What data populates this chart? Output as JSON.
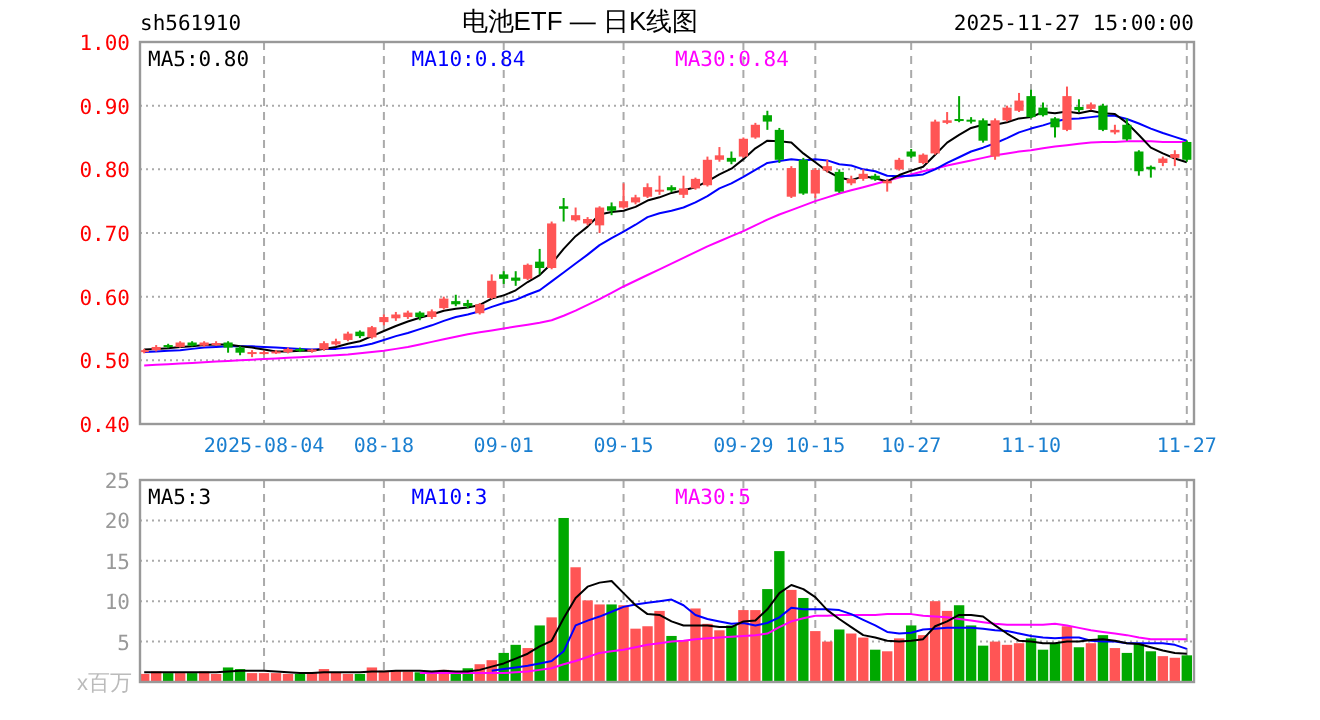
{
  "chart_data": [
    {
      "type": "candlestick",
      "title": "电池ETF — 日K线图",
      "annotations": [
        "sh561910",
        "2025-11-27 15:00:00"
      ],
      "categories": [
        null,
        null,
        null,
        null,
        null,
        null,
        null,
        null,
        null,
        null,
        "2025-08-04",
        null,
        null,
        null,
        null,
        null,
        null,
        null,
        null,
        null,
        "08-18",
        null,
        null,
        null,
        null,
        null,
        null,
        null,
        null,
        null,
        "09-01",
        null,
        null,
        null,
        null,
        null,
        null,
        null,
        null,
        null,
        "09-15",
        null,
        null,
        null,
        null,
        null,
        null,
        null,
        null,
        null,
        "09-29",
        null,
        null,
        null,
        null,
        null,
        "10-15",
        null,
        null,
        null,
        null,
        null,
        null,
        null,
        "10-27",
        null,
        null,
        null,
        null,
        null,
        null,
        null,
        null,
        null,
        "11-10",
        null,
        null,
        null,
        null,
        null,
        null,
        null,
        null,
        null,
        null,
        null,
        null,
        "11-27"
      ],
      "ohlc": [
        [
          0.513,
          0.518,
          0.511,
          0.516
        ],
        [
          0.516,
          0.524,
          0.514,
          0.521
        ],
        [
          0.524,
          0.526,
          0.519,
          0.521
        ],
        [
          0.521,
          0.53,
          0.52,
          0.528
        ],
        [
          0.528,
          0.53,
          0.522,
          0.523
        ],
        [
          0.523,
          0.53,
          0.521,
          0.528
        ],
        [
          0.525,
          0.53,
          0.523,
          0.527
        ],
        [
          0.528,
          0.53,
          0.512,
          0.52
        ],
        [
          0.52,
          0.522,
          0.508,
          0.512
        ],
        [
          0.51,
          0.516,
          0.505,
          0.513
        ],
        [
          0.511,
          0.515,
          0.509,
          0.513
        ],
        [
          0.512,
          0.516,
          0.51,
          0.514
        ],
        [
          0.513,
          0.52,
          0.511,
          0.518
        ],
        [
          0.518,
          0.52,
          0.513,
          0.515
        ],
        [
          0.514,
          0.518,
          0.512,
          0.517
        ],
        [
          0.517,
          0.53,
          0.515,
          0.527
        ],
        [
          0.525,
          0.534,
          0.523,
          0.53
        ],
        [
          0.532,
          0.545,
          0.53,
          0.542
        ],
        [
          0.545,
          0.547,
          0.535,
          0.538
        ],
        [
          0.536,
          0.554,
          0.534,
          0.552
        ],
        [
          0.56,
          0.572,
          0.555,
          0.568
        ],
        [
          0.566,
          0.576,
          0.562,
          0.572
        ],
        [
          0.568,
          0.578,
          0.565,
          0.575
        ],
        [
          0.575,
          0.577,
          0.563,
          0.568
        ],
        [
          0.568,
          0.58,
          0.565,
          0.577
        ],
        [
          0.582,
          0.6,
          0.58,
          0.597
        ],
        [
          0.593,
          0.603,
          0.585,
          0.588
        ],
        [
          0.59,
          0.595,
          0.582,
          0.585
        ],
        [
          0.574,
          0.59,
          0.572,
          0.588
        ],
        [
          0.598,
          0.635,
          0.596,
          0.625
        ],
        [
          0.635,
          0.64,
          0.62,
          0.628
        ],
        [
          0.63,
          0.64,
          0.617,
          0.625
        ],
        [
          0.628,
          0.652,
          0.626,
          0.65
        ],
        [
          0.655,
          0.675,
          0.635,
          0.645
        ],
        [
          0.645,
          0.718,
          0.643,
          0.715
        ],
        [
          0.742,
          0.755,
          0.718,
          0.738
        ],
        [
          0.72,
          0.74,
          0.718,
          0.728
        ],
        [
          0.715,
          0.725,
          0.712,
          0.722
        ],
        [
          0.712,
          0.742,
          0.7,
          0.74
        ],
        [
          0.742,
          0.748,
          0.728,
          0.735
        ],
        [
          0.74,
          0.778,
          0.738,
          0.75
        ],
        [
          0.748,
          0.76,
          0.745,
          0.756
        ],
        [
          0.757,
          0.778,
          0.755,
          0.772
        ],
        [
          0.765,
          0.79,
          0.76,
          0.768
        ],
        [
          0.772,
          0.775,
          0.764,
          0.767
        ],
        [
          0.76,
          0.79,
          0.755,
          0.77
        ],
        [
          0.77,
          0.787,
          0.768,
          0.785
        ],
        [
          0.775,
          0.82,
          0.773,
          0.815
        ],
        [
          0.815,
          0.835,
          0.812,
          0.822
        ],
        [
          0.818,
          0.828,
          0.808,
          0.812
        ],
        [
          0.82,
          0.85,
          0.818,
          0.848
        ],
        [
          0.85,
          0.873,
          0.848,
          0.87
        ],
        [
          0.885,
          0.892,
          0.862,
          0.875
        ],
        [
          0.862,
          0.865,
          0.81,
          0.815
        ],
        [
          0.757,
          0.805,
          0.755,
          0.802
        ],
        [
          0.815,
          0.818,
          0.76,
          0.762
        ],
        [
          0.762,
          0.802,
          0.755,
          0.799
        ],
        [
          0.798,
          0.815,
          0.795,
          0.805
        ],
        [
          0.796,
          0.8,
          0.763,
          0.765
        ],
        [
          0.778,
          0.79,
          0.775,
          0.785
        ],
        [
          0.785,
          0.8,
          0.782,
          0.793
        ],
        [
          0.79,
          0.793,
          0.782,
          0.784
        ],
        [
          0.778,
          0.785,
          0.765,
          0.782
        ],
        [
          0.8,
          0.818,
          0.798,
          0.815
        ],
        [
          0.828,
          0.832,
          0.818,
          0.82
        ],
        [
          0.81,
          0.825,
          0.808,
          0.823
        ],
        [
          0.825,
          0.878,
          0.823,
          0.875
        ],
        [
          0.873,
          0.89,
          0.871,
          0.877
        ],
        [
          0.879,
          0.915,
          0.874,
          0.877
        ],
        [
          0.878,
          0.882,
          0.872,
          0.875
        ],
        [
          0.877,
          0.88,
          0.842,
          0.845
        ],
        [
          0.82,
          0.88,
          0.815,
          0.877
        ],
        [
          0.877,
          0.9,
          0.875,
          0.897
        ],
        [
          0.892,
          0.92,
          0.89,
          0.908
        ],
        [
          0.915,
          0.925,
          0.88,
          0.882
        ],
        [
          0.897,
          0.905,
          0.883,
          0.885
        ],
        [
          0.88,
          0.882,
          0.85,
          0.866
        ],
        [
          0.862,
          0.93,
          0.86,
          0.915
        ],
        [
          0.898,
          0.91,
          0.89,
          0.893
        ],
        [
          0.895,
          0.905,
          0.893,
          0.902
        ],
        [
          0.9,
          0.903,
          0.86,
          0.862
        ],
        [
          0.858,
          0.87,
          0.855,
          0.862
        ],
        [
          0.87,
          0.88,
          0.845,
          0.847
        ],
        [
          0.828,
          0.83,
          0.79,
          0.797
        ],
        [
          0.804,
          0.806,
          0.787,
          0.8
        ],
        [
          0.81,
          0.82,
          0.805,
          0.817
        ],
        [
          0.818,
          0.83,
          0.805,
          0.824
        ],
        [
          0.843,
          0.845,
          0.812,
          0.815
        ]
      ],
      "colors": [
        "#ff5555",
        "#ff5555",
        "#00a800",
        "#ff5555",
        "#00a800",
        "#ff5555",
        "#ff5555",
        "#00a800",
        "#00a800",
        "#ff5555",
        "#ff5555",
        "#ff5555",
        "#ff5555",
        "#00a800",
        "#ff5555",
        "#ff5555",
        "#ff5555",
        "#ff5555",
        "#00a800",
        "#ff5555",
        "#ff5555",
        "#ff5555",
        "#ff5555",
        "#00a800",
        "#ff5555",
        "#ff5555",
        "#00a800",
        "#00a800",
        "#ff5555",
        "#ff5555",
        "#00a800",
        "#00a800",
        "#ff5555",
        "#00a800",
        "#ff5555",
        "#00a800",
        "#ff5555",
        "#ff5555",
        "#ff5555",
        "#00a800",
        "#ff5555",
        "#ff5555",
        "#ff5555",
        "#ff5555",
        "#00a800",
        "#ff5555",
        "#ff5555",
        "#ff5555",
        "#ff5555",
        "#00a800",
        "#ff5555",
        "#ff5555",
        "#00a800",
        "#00a800",
        "#ff5555",
        "#00a800",
        "#ff5555",
        "#ff5555",
        "#00a800",
        "#ff5555",
        "#ff5555",
        "#00a800",
        "#ff5555",
        "#ff5555",
        "#00a800",
        "#ff5555",
        "#ff5555",
        "#ff5555",
        "#00a800",
        "#00a800",
        "#00a800",
        "#ff5555",
        "#ff5555",
        "#ff5555",
        "#00a800",
        "#00a800",
        "#00a800",
        "#ff5555",
        "#00a800",
        "#ff5555",
        "#00a800",
        "#ff5555",
        "#00a800",
        "#00a800",
        "#00a800",
        "#ff5555",
        "#ff5555",
        "#00a800"
      ],
      "series": [
        {
          "type": "line",
          "name": "MA5:0.80",
          "color": "#000000",
          "values": [
            0.517,
            0.518,
            0.519,
            0.521,
            0.522,
            0.524,
            0.525,
            0.525,
            0.522,
            0.52,
            0.517,
            0.514,
            0.514,
            0.515,
            0.515,
            0.518,
            0.521,
            0.526,
            0.53,
            0.538,
            0.546,
            0.554,
            0.561,
            0.567,
            0.572,
            0.578,
            0.581,
            0.583,
            0.587,
            0.597,
            0.602,
            0.61,
            0.623,
            0.634,
            0.652,
            0.675,
            0.695,
            0.71,
            0.729,
            0.733,
            0.735,
            0.741,
            0.751,
            0.756,
            0.763,
            0.767,
            0.772,
            0.781,
            0.792,
            0.801,
            0.816,
            0.833,
            0.845,
            0.844,
            0.842,
            0.825,
            0.811,
            0.797,
            0.787,
            0.783,
            0.789,
            0.786,
            0.781,
            0.791,
            0.798,
            0.804,
            0.823,
            0.842,
            0.854,
            0.865,
            0.87,
            0.87,
            0.874,
            0.88,
            0.882,
            0.89,
            0.888,
            0.891,
            0.888,
            0.892,
            0.888,
            0.887,
            0.873,
            0.854,
            0.834,
            0.825,
            0.817,
            0.811
          ]
        },
        {
          "type": "line",
          "name": "MA10:0.84",
          "color": "#0000ff",
          "values": [
            0.513,
            0.514,
            0.515,
            0.516,
            0.518,
            0.52,
            0.521,
            0.522,
            0.522,
            0.522,
            0.521,
            0.52,
            0.519,
            0.518,
            0.517,
            0.518,
            0.518,
            0.52,
            0.522,
            0.526,
            0.532,
            0.538,
            0.543,
            0.549,
            0.555,
            0.562,
            0.568,
            0.572,
            0.577,
            0.584,
            0.59,
            0.595,
            0.603,
            0.61,
            0.624,
            0.638,
            0.652,
            0.666,
            0.681,
            0.692,
            0.702,
            0.713,
            0.725,
            0.731,
            0.735,
            0.74,
            0.748,
            0.758,
            0.77,
            0.778,
            0.788,
            0.799,
            0.81,
            0.813,
            0.816,
            0.814,
            0.816,
            0.814,
            0.808,
            0.806,
            0.8,
            0.797,
            0.79,
            0.789,
            0.79,
            0.792,
            0.8,
            0.81,
            0.819,
            0.828,
            0.834,
            0.841,
            0.849,
            0.858,
            0.864,
            0.869,
            0.875,
            0.879,
            0.88,
            0.882,
            0.884,
            0.884,
            0.879,
            0.872,
            0.864,
            0.857,
            0.851,
            0.845
          ]
        },
        {
          "type": "line",
          "name": "MA30:0.84",
          "color": "#ff00ff",
          "values": [
            0.492,
            0.493,
            0.494,
            0.495,
            0.496,
            0.497,
            0.498,
            0.499,
            0.5,
            0.501,
            0.502,
            0.503,
            0.504,
            0.505,
            0.506,
            0.507,
            0.508,
            0.509,
            0.511,
            0.513,
            0.515,
            0.518,
            0.521,
            0.525,
            0.529,
            0.533,
            0.537,
            0.541,
            0.544,
            0.547,
            0.55,
            0.553,
            0.556,
            0.559,
            0.563,
            0.57,
            0.578,
            0.587,
            0.596,
            0.606,
            0.616,
            0.625,
            0.634,
            0.643,
            0.652,
            0.661,
            0.67,
            0.679,
            0.687,
            0.695,
            0.703,
            0.712,
            0.721,
            0.729,
            0.736,
            0.743,
            0.75,
            0.756,
            0.762,
            0.767,
            0.772,
            0.777,
            0.782,
            0.787,
            0.792,
            0.797,
            0.801,
            0.806,
            0.81,
            0.814,
            0.818,
            0.822,
            0.825,
            0.828,
            0.83,
            0.833,
            0.836,
            0.838,
            0.84,
            0.842,
            0.843,
            0.843,
            0.844,
            0.844,
            0.844,
            0.843,
            0.843,
            0.843
          ]
        }
      ],
      "ylim": [
        0.4,
        1.0
      ],
      "yticks": [
        {
          "value": 0.4,
          "label": "0.40"
        },
        {
          "value": 0.5,
          "label": "0.50"
        },
        {
          "value": 0.6,
          "label": "0.60"
        },
        {
          "value": 0.7,
          "label": "0.70"
        },
        {
          "value": 0.8,
          "label": "0.80"
        },
        {
          "value": 0.9,
          "label": "0.90"
        },
        {
          "value": 1.0,
          "label": "1.00"
        }
      ],
      "grid": true,
      "legend": "top"
    },
    {
      "type": "bar",
      "ylabel": "x百万",
      "categories": [
        null,
        null,
        null,
        null,
        null,
        null,
        null,
        null,
        null,
        null,
        null,
        null,
        null,
        null,
        null,
        null,
        null,
        null,
        null,
        null,
        null,
        null,
        null,
        null,
        null,
        null,
        null,
        null,
        null,
        null,
        null,
        null,
        null,
        null,
        null,
        null,
        null,
        null,
        null,
        null,
        null,
        null,
        null,
        null,
        null,
        null,
        null,
        null,
        null,
        null,
        null,
        null,
        null,
        null,
        null,
        null,
        null,
        null,
        null,
        null,
        null,
        null,
        null,
        null,
        null,
        null,
        null,
        null,
        null,
        null,
        null,
        null,
        null,
        null,
        null,
        null,
        null,
        null,
        null,
        null,
        null,
        null,
        null,
        null,
        null,
        null,
        null,
        null
      ],
      "values": [
        1.0,
        1.3,
        1.1,
        1.1,
        1.1,
        1.3,
        1.0,
        1.8,
        1.6,
        1.1,
        1.1,
        1.1,
        1.0,
        1.0,
        1.1,
        1.6,
        1.2,
        1.0,
        1.0,
        1.8,
        1.4,
        1.4,
        1.3,
        1.2,
        1.0,
        1.5,
        1.3,
        1.7,
        2.2,
        2.7,
        3.6,
        4.6,
        4.2,
        7.0,
        8.0,
        20.3,
        14.2,
        10.1,
        9.6,
        9.6,
        9.5,
        6.6,
        6.9,
        8.8,
        5.7,
        5.1,
        9.1,
        7.2,
        6.4,
        7.0,
        8.9,
        8.9,
        11.5,
        16.2,
        11.4,
        10.4,
        6.3,
        5.0,
        6.5,
        6.0,
        5.5,
        4.0,
        3.8,
        5.4,
        7.0,
        5.8,
        10.0,
        8.8,
        9.5,
        7.0,
        4.5,
        5.0,
        4.6,
        4.8,
        5.4,
        4.0,
        4.8,
        6.9,
        4.3,
        4.8,
        5.8,
        4.2,
        3.6,
        4.7,
        3.8,
        3.2,
        3.0,
        3.3
      ],
      "colors": [
        "#ff5555",
        "#ff5555",
        "#00a800",
        "#ff5555",
        "#00a800",
        "#ff5555",
        "#ff5555",
        "#00a800",
        "#00a800",
        "#ff5555",
        "#ff5555",
        "#ff5555",
        "#ff5555",
        "#00a800",
        "#ff5555",
        "#ff5555",
        "#ff5555",
        "#ff5555",
        "#00a800",
        "#ff5555",
        "#ff5555",
        "#ff5555",
        "#ff5555",
        "#00a800",
        "#ff5555",
        "#ff5555",
        "#00a800",
        "#00a800",
        "#ff5555",
        "#ff5555",
        "#00a800",
        "#00a800",
        "#ff5555",
        "#00a800",
        "#ff5555",
        "#00a800",
        "#ff5555",
        "#ff5555",
        "#ff5555",
        "#00a800",
        "#ff5555",
        "#ff5555",
        "#ff5555",
        "#ff5555",
        "#00a800",
        "#ff5555",
        "#ff5555",
        "#ff5555",
        "#ff5555",
        "#00a800",
        "#ff5555",
        "#ff5555",
        "#00a800",
        "#00a800",
        "#ff5555",
        "#00a800",
        "#ff5555",
        "#ff5555",
        "#00a800",
        "#ff5555",
        "#ff5555",
        "#00a800",
        "#ff5555",
        "#ff5555",
        "#00a800",
        "#ff5555",
        "#ff5555",
        "#ff5555",
        "#00a800",
        "#00a800",
        "#00a800",
        "#ff5555",
        "#ff5555",
        "#ff5555",
        "#00a800",
        "#00a800",
        "#00a800",
        "#ff5555",
        "#00a800",
        "#ff5555",
        "#00a800",
        "#ff5555",
        "#00a800",
        "#00a800",
        "#00a800",
        "#ff5555",
        "#ff5555",
        "#00a800"
      ],
      "series": [
        {
          "type": "line",
          "name": "MA5:3",
          "color": "#000000",
          "values": [
            1.2,
            1.2,
            1.2,
            1.2,
            1.2,
            1.2,
            1.2,
            1.3,
            1.4,
            1.4,
            1.4,
            1.3,
            1.2,
            1.1,
            1.1,
            1.2,
            1.2,
            1.2,
            1.2,
            1.3,
            1.3,
            1.4,
            1.4,
            1.4,
            1.3,
            1.4,
            1.3,
            1.3,
            1.5,
            1.9,
            2.3,
            2.9,
            3.5,
            4.4,
            5.1,
            7.9,
            10.4,
            11.8,
            12.3,
            12.5,
            11.0,
            9.5,
            8.4,
            8.3,
            7.5,
            7.0,
            7.0,
            7.0,
            6.8,
            6.8,
            7.5,
            7.6,
            9.0,
            11.0,
            12.0,
            11.5,
            10.5,
            8.9,
            7.8,
            6.8,
            5.8,
            5.5,
            5.1,
            5.0,
            5.1,
            5.3,
            6.9,
            7.5,
            8.3,
            8.3,
            8.1,
            7.0,
            6.0,
            5.1,
            5.0,
            4.8,
            4.8,
            5.0,
            5.0,
            5.2,
            5.3,
            5.1,
            4.8,
            4.7,
            4.3,
            3.9,
            3.6,
            3.5
          ]
        },
        {
          "type": "line",
          "name": "MA10:3",
          "color": "#0000ff",
          "values": [
            null,
            null,
            null,
            null,
            null,
            null,
            null,
            null,
            null,
            null,
            null,
            null,
            null,
            null,
            null,
            null,
            null,
            null,
            null,
            null,
            null,
            null,
            null,
            null,
            null,
            null,
            null,
            null,
            null,
            1.4,
            1.6,
            1.8,
            2.0,
            2.3,
            2.6,
            3.8,
            7.0,
            7.6,
            8.1,
            8.7,
            9.3,
            9.6,
            9.8,
            10.0,
            10.2,
            9.5,
            8.3,
            7.8,
            7.5,
            7.2,
            7.3,
            7.0,
            7.3,
            8.0,
            9.2,
            9.0,
            9.0,
            9.0,
            8.9,
            8.4,
            7.7,
            7.0,
            6.2,
            6.0,
            6.1,
            6.5,
            6.6,
            6.7,
            6.7,
            6.7,
            6.6,
            6.4,
            6.3,
            6.0,
            5.7,
            5.5,
            5.4,
            5.5,
            5.5,
            5.1,
            5.0,
            5.0,
            4.8,
            4.8,
            4.8,
            4.8,
            4.6,
            4.1
          ]
        },
        {
          "type": "line",
          "name": "MA30:5",
          "color": "#ff00ff",
          "values": [
            null,
            null,
            null,
            null,
            null,
            null,
            null,
            null,
            null,
            null,
            null,
            null,
            null,
            null,
            null,
            null,
            null,
            null,
            null,
            null,
            null,
            null,
            null,
            1.1,
            1.1,
            1.1,
            1.1,
            1.1,
            1.1,
            1.1,
            1.1,
            1.2,
            1.3,
            1.5,
            1.7,
            2.2,
            2.6,
            3.1,
            3.6,
            3.8,
            4.0,
            4.3,
            4.6,
            4.8,
            5.0,
            5.1,
            5.3,
            5.4,
            5.5,
            5.6,
            5.7,
            5.8,
            6.0,
            6.8,
            7.5,
            7.9,
            8.2,
            8.2,
            8.3,
            8.3,
            8.3,
            8.3,
            8.4,
            8.4,
            8.4,
            8.2,
            8.1,
            8.0,
            7.8,
            7.6,
            7.4,
            7.2,
            7.1,
            7.1,
            7.1,
            7.1,
            7.2,
            7.0,
            6.7,
            6.4,
            6.2,
            6.0,
            5.8,
            5.5,
            5.3,
            5.3,
            5.3,
            5.3
          ]
        }
      ],
      "ylim": [
        0,
        25
      ],
      "yticks": [
        5,
        10,
        15,
        20,
        25
      ],
      "grid": true,
      "legend": "top",
      "tick_labels": "y"
    }
  ]
}
